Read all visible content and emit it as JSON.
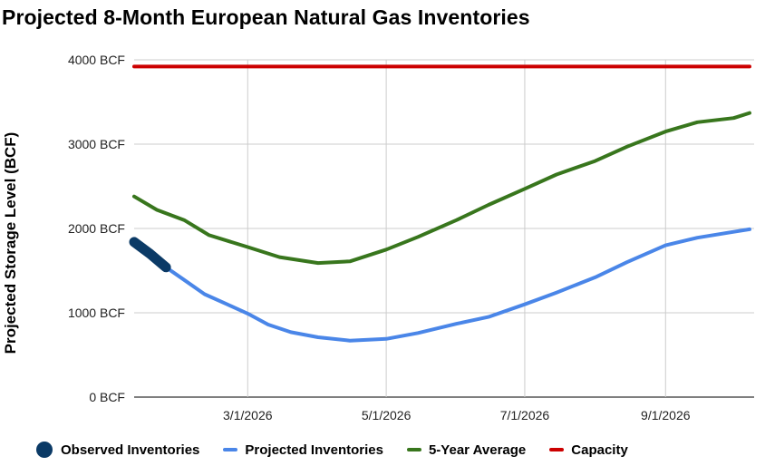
{
  "chart_data": {
    "type": "line",
    "title": "Projected 8-Month European Natural Gas Inventories",
    "ylabel": "Projected Storage Level (BCF)",
    "xlabel": "",
    "ylim": [
      0,
      4000
    ],
    "xlim": [
      "2026-01-10",
      "2026-10-10"
    ],
    "yticks": [
      0,
      1000,
      2000,
      3000,
      4000
    ],
    "ytick_labels": [
      "0 BCF",
      "1000 BCF",
      "2000 BCF",
      "3000 BCF",
      "4000 BCF"
    ],
    "xticks": [
      "2026-03-01",
      "2026-05-01",
      "2026-07-01",
      "2026-09-01"
    ],
    "xtick_labels": [
      "3/1/2026",
      "5/1/2026",
      "7/1/2026",
      "9/1/2026"
    ],
    "grid": true,
    "legend_position": "bottom",
    "series": [
      {
        "name": "Observed Inventories",
        "color": "#0b3a66",
        "style": "thick-line",
        "points": [
          [
            "2026-01-10",
            1840
          ],
          [
            "2026-01-17",
            1700
          ],
          [
            "2026-01-24",
            1540
          ]
        ]
      },
      {
        "name": "Projected Inventories",
        "color": "#4a86e8",
        "style": "line",
        "points": [
          [
            "2026-01-24",
            1540
          ],
          [
            "2026-02-01",
            1390
          ],
          [
            "2026-02-10",
            1220
          ],
          [
            "2026-02-20",
            1100
          ],
          [
            "2026-03-01",
            990
          ],
          [
            "2026-03-10",
            860
          ],
          [
            "2026-03-20",
            770
          ],
          [
            "2026-04-01",
            710
          ],
          [
            "2026-04-15",
            670
          ],
          [
            "2026-05-01",
            690
          ],
          [
            "2026-05-15",
            760
          ],
          [
            "2026-06-01",
            870
          ],
          [
            "2026-06-15",
            950
          ],
          [
            "2026-07-01",
            1100
          ],
          [
            "2026-07-15",
            1240
          ],
          [
            "2026-08-01",
            1420
          ],
          [
            "2026-08-15",
            1600
          ],
          [
            "2026-09-01",
            1800
          ],
          [
            "2026-09-15",
            1890
          ],
          [
            "2026-10-01",
            1960
          ],
          [
            "2026-10-08",
            1990
          ]
        ]
      },
      {
        "name": "5-Year Average",
        "color": "#38761d",
        "style": "line",
        "points": [
          [
            "2026-01-10",
            2380
          ],
          [
            "2026-01-20",
            2220
          ],
          [
            "2026-02-01",
            2100
          ],
          [
            "2026-02-12",
            1920
          ],
          [
            "2026-03-01",
            1780
          ],
          [
            "2026-03-15",
            1660
          ],
          [
            "2026-04-01",
            1590
          ],
          [
            "2026-04-15",
            1610
          ],
          [
            "2026-05-01",
            1750
          ],
          [
            "2026-05-15",
            1900
          ],
          [
            "2026-06-01",
            2100
          ],
          [
            "2026-06-15",
            2280
          ],
          [
            "2026-07-01",
            2470
          ],
          [
            "2026-07-15",
            2640
          ],
          [
            "2026-08-01",
            2800
          ],
          [
            "2026-08-15",
            2970
          ],
          [
            "2026-09-01",
            3150
          ],
          [
            "2026-09-15",
            3260
          ],
          [
            "2026-10-01",
            3310
          ],
          [
            "2026-10-08",
            3370
          ]
        ]
      },
      {
        "name": "Capacity",
        "color": "#cc0000",
        "style": "line",
        "points": [
          [
            "2026-01-10",
            3920
          ],
          [
            "2026-10-08",
            3920
          ]
        ]
      }
    ]
  }
}
